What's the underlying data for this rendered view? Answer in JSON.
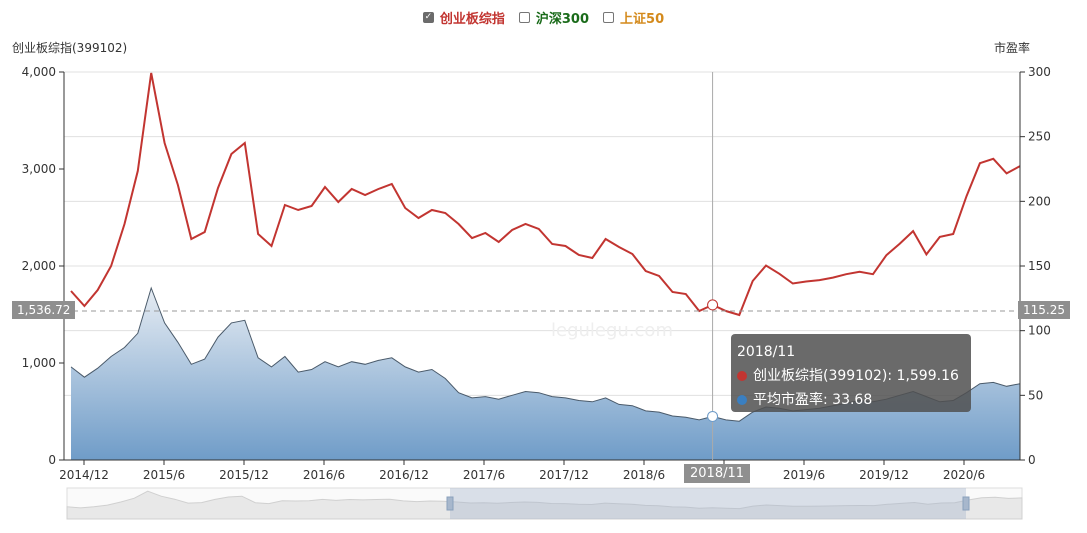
{
  "legend": {
    "items": [
      {
        "label": "创业板综指",
        "checked": true,
        "color": "#c23531"
      },
      {
        "label": "沪深300",
        "checked": false,
        "color": "#1a6b1a"
      },
      {
        "label": "上证50",
        "checked": false,
        "color": "#d48a1c"
      }
    ]
  },
  "axes": {
    "left_title": "创业板综指(399102)",
    "right_title": "市盈率",
    "left_ticks": [
      "4,000",
      "3,000",
      "2,000",
      "1,000",
      "0"
    ],
    "right_ticks": [
      "300",
      "250",
      "200",
      "150",
      "100",
      "50",
      "0"
    ],
    "x_ticks": [
      "2014/12",
      "2015/6",
      "2015/12",
      "2016/6",
      "2016/12",
      "2017/6",
      "2017/12",
      "2018/6",
      "2018/12",
      "2019/6",
      "2019/12",
      "2020/6"
    ]
  },
  "pointer": {
    "x_label": "2018/11",
    "left_label": "1,536.72",
    "right_label": "115.25"
  },
  "tooltip": {
    "title": "2018/11",
    "rows": [
      {
        "label": "创业板综指(399102): 1,599.16",
        "color": "#c23531"
      },
      {
        "label": "平均市盈率: 33.68",
        "color": "#3a7fc1"
      }
    ]
  },
  "watermark": "legulegu.com",
  "chart_data": {
    "type": "line",
    "title": "",
    "xlabel": "",
    "ylabel": "创业板综指(399102)",
    "ylabel_right": "市盈率",
    "ylim": [
      0,
      4000
    ],
    "ylim_right": [
      0,
      300
    ],
    "grid": true,
    "legend_position": "top",
    "x_start": "2014/11",
    "x_end": "2020/10",
    "x_interval": "monthly",
    "series": [
      {
        "name": "创业板综指(399102)",
        "axis": "left",
        "type": "line",
        "color": "#c23531",
        "values": [
          1742,
          1588,
          1753,
          2000,
          2433,
          2980,
          3990,
          3268,
          2835,
          2278,
          2351,
          2804,
          3155,
          3268,
          2330,
          2206,
          2629,
          2577,
          2619,
          2814,
          2660,
          2794,
          2732,
          2794,
          2845,
          2598,
          2495,
          2577,
          2546,
          2433,
          2288,
          2340,
          2247,
          2371,
          2433,
          2381,
          2227,
          2206,
          2113,
          2082,
          2278,
          2196,
          2124,
          1948,
          1897,
          1732,
          1711,
          1536,
          1599,
          1536,
          1495,
          1845,
          2005,
          1920,
          1820,
          1840,
          1855,
          1880,
          1915,
          1940,
          1915,
          2110,
          2230,
          2360,
          2120,
          2300,
          2330,
          2720,
          3060,
          3105,
          2955,
          3030
        ]
      },
      {
        "name": "平均市盈率",
        "axis": "right",
        "type": "area",
        "color": "#3a7fc1",
        "values": [
          72,
          64,
          71,
          80,
          87,
          98,
          133,
          106,
          91,
          74,
          78,
          95,
          106,
          108,
          79,
          72,
          80,
          68,
          70,
          76,
          72,
          76,
          74,
          77,
          79,
          72,
          68,
          70,
          63,
          52,
          48,
          49,
          47,
          50,
          53,
          52,
          49,
          48,
          46,
          45,
          48,
          43,
          42,
          38,
          37,
          34,
          33,
          31,
          33.68,
          31,
          30,
          37,
          41,
          40,
          38,
          39,
          40,
          42,
          44,
          46,
          45,
          47,
          50,
          53,
          49,
          45,
          46,
          52,
          59,
          60,
          57,
          59
        ]
      }
    ]
  }
}
